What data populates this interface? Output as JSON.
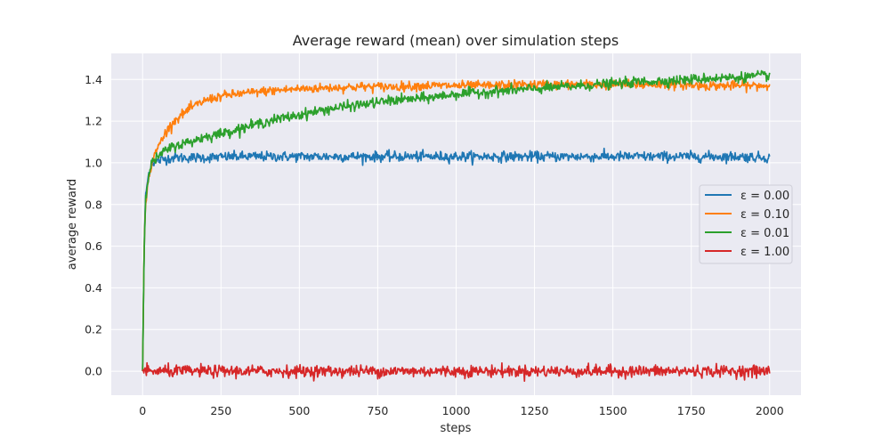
{
  "chart_data": {
    "type": "line",
    "title": "Average reward (mean) over simulation steps",
    "xlabel": "steps",
    "ylabel": "average reward",
    "xlim": [
      -100,
      2100
    ],
    "ylim": [
      -0.115,
      1.525
    ],
    "xticks": [
      0,
      250,
      500,
      750,
      1000,
      1250,
      1500,
      1750,
      2000
    ],
    "yticks": [
      0.0,
      0.2,
      0.4,
      0.6,
      0.8,
      1.0,
      1.2,
      1.4
    ],
    "grid": true,
    "legend_position": "center-right",
    "background": "#eaeaf2",
    "series": [
      {
        "name": "ε = 0.00",
        "color": "#1f77b4",
        "x": [
          0,
          5,
          10,
          20,
          30,
          50,
          75,
          100,
          150,
          200,
          300,
          400,
          500,
          600,
          700,
          800,
          900,
          1000,
          1100,
          1200,
          1300,
          1400,
          1500,
          1600,
          1700,
          1800,
          1900,
          2000
        ],
        "y": [
          0.0,
          0.6,
          0.85,
          0.95,
          1.0,
          1.01,
          1.02,
          1.025,
          1.025,
          1.025,
          1.03,
          1.03,
          1.03,
          1.03,
          1.03,
          1.03,
          1.03,
          1.03,
          1.03,
          1.03,
          1.03,
          1.03,
          1.03,
          1.03,
          1.03,
          1.03,
          1.03,
          1.025
        ],
        "noise": 0.012
      },
      {
        "name": "ε = 0.10",
        "color": "#ff7f0e",
        "x": [
          0,
          5,
          10,
          20,
          30,
          50,
          75,
          100,
          150,
          200,
          250,
          300,
          400,
          500,
          600,
          700,
          800,
          900,
          1000,
          1100,
          1200,
          1300,
          1400,
          1500,
          1600,
          1700,
          1800,
          1900,
          2000
        ],
        "y": [
          0.0,
          0.6,
          0.82,
          0.93,
          1.0,
          1.08,
          1.15,
          1.2,
          1.26,
          1.3,
          1.32,
          1.33,
          1.345,
          1.355,
          1.36,
          1.365,
          1.365,
          1.37,
          1.37,
          1.37,
          1.375,
          1.375,
          1.375,
          1.375,
          1.375,
          1.375,
          1.37,
          1.37,
          1.37
        ],
        "noise": 0.011
      },
      {
        "name": "ε = 0.01",
        "color": "#2ca02c",
        "x": [
          0,
          5,
          10,
          20,
          30,
          50,
          75,
          100,
          150,
          200,
          250,
          300,
          400,
          500,
          600,
          700,
          800,
          900,
          1000,
          1100,
          1200,
          1300,
          1400,
          1500,
          1600,
          1700,
          1800,
          1900,
          2000
        ],
        "y": [
          0.0,
          0.6,
          0.85,
          0.95,
          1.0,
          1.03,
          1.06,
          1.08,
          1.1,
          1.125,
          1.14,
          1.16,
          1.2,
          1.23,
          1.26,
          1.28,
          1.3,
          1.31,
          1.33,
          1.34,
          1.35,
          1.36,
          1.37,
          1.38,
          1.39,
          1.395,
          1.405,
          1.41,
          1.42
        ],
        "noise": 0.012
      },
      {
        "name": "ε = 1.00",
        "color": "#d62728",
        "x": [
          0,
          2000
        ],
        "y": [
          0.0,
          0.0
        ],
        "noise": 0.014
      }
    ]
  }
}
